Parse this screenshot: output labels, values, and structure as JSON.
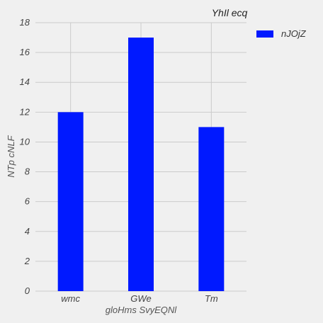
{
  "chart_data": {
    "type": "bar",
    "title": "YhIl ecq",
    "xlabel": "gloHms SvyEQNl",
    "ylabel": "NTp cNLF",
    "categories": [
      "wmc",
      "GWe",
      "Tm"
    ],
    "series": [
      {
        "name": "nJOjZ",
        "values": [
          12,
          17,
          11
        ],
        "color": "#0019ff"
      }
    ],
    "ylim": [
      0,
      18
    ],
    "yticks": [
      0,
      2,
      4,
      6,
      8,
      10,
      12,
      14,
      16,
      18
    ],
    "grid": true,
    "legend": "top-right"
  }
}
